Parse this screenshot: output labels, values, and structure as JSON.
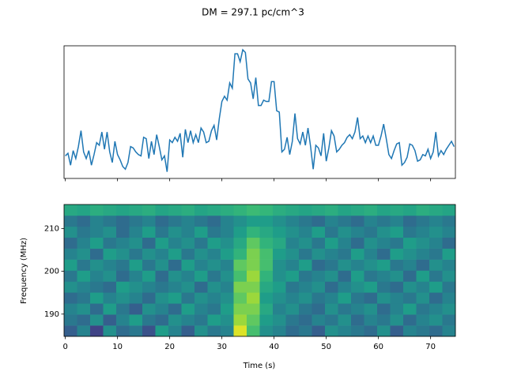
{
  "title": "DM = 297.1 pc/cm^3",
  "chart_data": [
    {
      "type": "line",
      "color": "#1f77b4",
      "sharex": true,
      "xlim": [
        -0.25,
        74.75
      ],
      "ylim": [
        0,
        100
      ],
      "x": [
        0,
        0.5,
        1,
        1.5,
        2,
        2.5,
        3,
        3.5,
        4,
        4.5,
        5,
        5.5,
        6,
        6.5,
        7,
        7.5,
        8,
        8.5,
        9,
        9.5,
        10,
        10.5,
        11,
        11.5,
        12,
        12.5,
        13,
        13.5,
        14,
        14.5,
        15,
        15.5,
        16,
        16.5,
        17,
        17.5,
        18,
        18.5,
        19,
        19.5,
        20,
        20.5,
        21,
        21.5,
        22,
        22.5,
        23,
        23.5,
        24,
        24.5,
        25,
        25.5,
        26,
        26.5,
        27,
        27.5,
        28,
        28.5,
        29,
        29.5,
        30,
        30.5,
        31,
        31.5,
        32,
        32.5,
        33,
        33.5,
        34,
        34.5,
        35,
        35.5,
        36,
        36.5,
        37,
        37.5,
        38,
        38.5,
        39,
        39.5,
        40,
        40.5,
        41,
        41.5,
        42,
        42.5,
        43,
        43.5,
        44,
        44.5,
        45,
        45.5,
        46,
        46.5,
        47,
        47.5,
        48,
        48.5,
        49,
        49.5,
        50,
        50.5,
        51,
        51.5,
        52,
        52.5,
        53,
        53.5,
        54,
        54.5,
        55,
        55.5,
        56,
        56.5,
        57,
        57.5,
        58,
        58.5,
        59,
        59.5,
        60,
        60.5,
        61,
        61.5,
        62,
        62.5,
        63,
        63.5,
        64,
        64.5,
        65,
        65.5,
        66,
        66.5,
        67,
        67.5,
        68,
        68.5,
        69,
        69.5,
        70,
        70.5,
        71,
        71.5,
        72,
        72.5,
        73,
        73.5,
        74,
        74.5
      ],
      "values": [
        17,
        19,
        10,
        21,
        15,
        24,
        36,
        20,
        15,
        21,
        10,
        18,
        27,
        25,
        35,
        22,
        35,
        20,
        12,
        28,
        18,
        14,
        9,
        7,
        12,
        24,
        23,
        20,
        18,
        17,
        31,
        30,
        15,
        28,
        18,
        33,
        24,
        14,
        17,
        5,
        29,
        27,
        31,
        28,
        34,
        16,
        37,
        27,
        36,
        27,
        33,
        27,
        38,
        35,
        27,
        28,
        36,
        40,
        29,
        45,
        58,
        62,
        59,
        72,
        68,
        94,
        94,
        88,
        97,
        95,
        75,
        72,
        60,
        76,
        55,
        55,
        59,
        58,
        58,
        73,
        73,
        51,
        50,
        20,
        22,
        31,
        18,
        28,
        49,
        30,
        26,
        35,
        25,
        38,
        24,
        7,
        25,
        23,
        17,
        34,
        13,
        23,
        36,
        32,
        20,
        22,
        25,
        27,
        31,
        33,
        30,
        35,
        46,
        30,
        32,
        27,
        32,
        27,
        32,
        25,
        25,
        32,
        41,
        30,
        18,
        15,
        21,
        26,
        27,
        10,
        12,
        16,
        26,
        25,
        21,
        13,
        14,
        18,
        17,
        22,
        15,
        20,
        35,
        17,
        21,
        18,
        22,
        25,
        28,
        24
      ]
    },
    {
      "type": "heatmap",
      "colormap": "viridis",
      "xlabel": "Time (s)",
      "ylabel": "Frequency (MHz)",
      "xlim": [
        -0.25,
        74.75
      ],
      "ylim": [
        184.8,
        215.6
      ],
      "clim": [
        0,
        100
      ],
      "xticks": [
        0,
        10,
        20,
        30,
        40,
        50,
        60,
        70
      ],
      "yticks": [
        190,
        200,
        210
      ],
      "values": [
        [
          30,
          45,
          20,
          50,
          35,
          40,
          25,
          55,
          45,
          30,
          50,
          40,
          45,
          95,
          70,
          50,
          45,
          35,
          40,
          30,
          50,
          45,
          40,
          35,
          50,
          30,
          45,
          40,
          35,
          45
        ],
        [
          40,
          35,
          50,
          30,
          45,
          55,
          40,
          35,
          50,
          45,
          40,
          55,
          50,
          85,
          75,
          55,
          50,
          40,
          35,
          45,
          40,
          50,
          35,
          45,
          40,
          50,
          35,
          45,
          50,
          40
        ],
        [
          45,
          50,
          35,
          55,
          40,
          30,
          50,
          45,
          35,
          55,
          45,
          40,
          55,
          80,
          80,
          60,
          45,
          50,
          40,
          35,
          50,
          40,
          45,
          50,
          35,
          45,
          55,
          40,
          45,
          50
        ],
        [
          35,
          40,
          55,
          45,
          50,
          45,
          35,
          50,
          55,
          40,
          50,
          45,
          50,
          75,
          85,
          55,
          50,
          45,
          50,
          40,
          45,
          55,
          40,
          35,
          50,
          45,
          40,
          50,
          35,
          45
        ],
        [
          50,
          45,
          40,
          35,
          55,
          50,
          45,
          40,
          45,
          50,
          35,
          50,
          45,
          80,
          80,
          60,
          55,
          40,
          45,
          50,
          35,
          45,
          50,
          55,
          40,
          35,
          50,
          45,
          55,
          40
        ],
        [
          40,
          55,
          45,
          50,
          35,
          45,
          55,
          35,
          50,
          45,
          55,
          40,
          50,
          70,
          85,
          65,
          50,
          55,
          40,
          45,
          50,
          35,
          55,
          40,
          45,
          50,
          35,
          55,
          40,
          50
        ],
        [
          55,
          40,
          50,
          45,
          40,
          55,
          40,
          50,
          35,
          55,
          45,
          50,
          45,
          75,
          80,
          70,
          50,
          45,
          55,
          35,
          40,
          50,
          45,
          50,
          55,
          40,
          45,
          35,
          50,
          45
        ],
        [
          45,
          50,
          35,
          55,
          50,
          40,
          50,
          45,
          55,
          40,
          50,
          45,
          55,
          65,
          80,
          70,
          55,
          50,
          40,
          50,
          45,
          40,
          55,
          45,
          35,
          55,
          50,
          45,
          40,
          55
        ],
        [
          35,
          45,
          55,
          40,
          45,
          50,
          35,
          55,
          45,
          50,
          40,
          55,
          50,
          60,
          75,
          65,
          60,
          45,
          50,
          40,
          55,
          45,
          35,
          50,
          45,
          40,
          55,
          50,
          45,
          35
        ],
        [
          50,
          40,
          45,
          50,
          35,
          45,
          55,
          40,
          50,
          45,
          55,
          40,
          45,
          55,
          65,
          60,
          55,
          50,
          45,
          55,
          40,
          50,
          45,
          40,
          50,
          55,
          40,
          45,
          50,
          45
        ],
        [
          40,
          35,
          45,
          40,
          35,
          40,
          45,
          35,
          40,
          45,
          40,
          35,
          45,
          50,
          55,
          55,
          50,
          45,
          40,
          35,
          45,
          40,
          35,
          45,
          40,
          45,
          35,
          40,
          45,
          40
        ],
        [
          60,
          58,
          62,
          60,
          58,
          60,
          62,
          58,
          60,
          62,
          58,
          60,
          62,
          65,
          68,
          66,
          62,
          60,
          58,
          60,
          62,
          58,
          60,
          62,
          58,
          60,
          58,
          62,
          60,
          58
        ]
      ]
    }
  ]
}
